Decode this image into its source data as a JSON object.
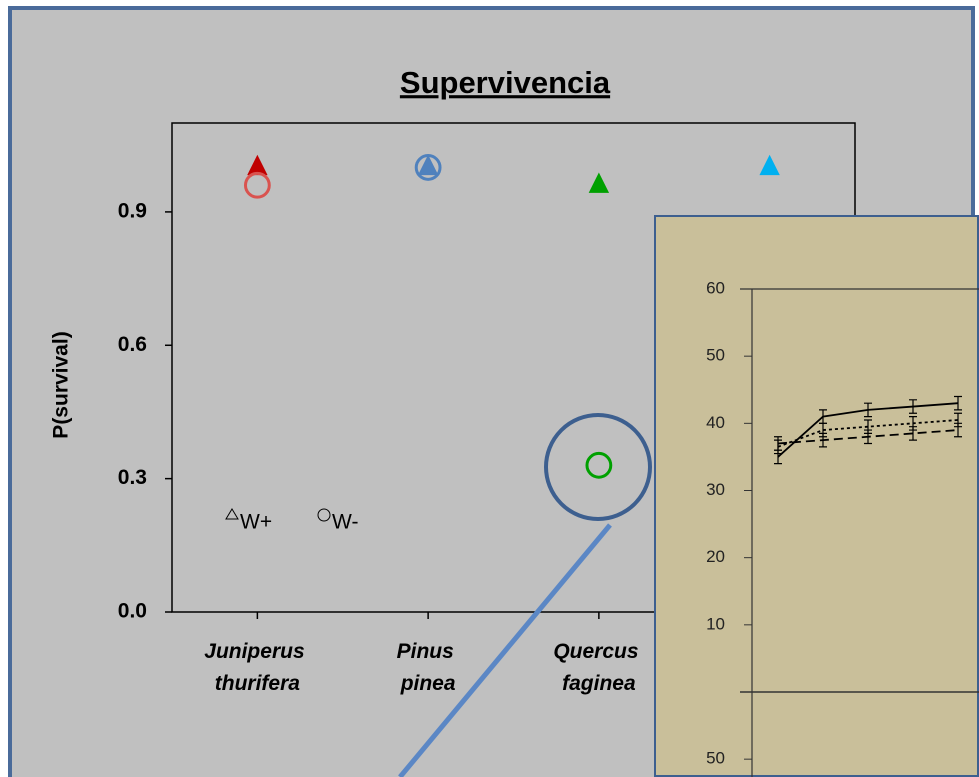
{
  "chart_data": [
    {
      "type": "scatter",
      "title": "Supervivencia",
      "y_label": "P(survival)",
      "categories": [
        "Juniperus thurifera",
        "Pinus pinea",
        "Quercus faginea",
        null
      ],
      "series": [
        {
          "name": "W+",
          "marker": "triangle",
          "point_colors": [
            "#c00000",
            "#4f81bd",
            "#00a000",
            "#00b0f0"
          ],
          "values": [
            1.0,
            1.0,
            0.96,
            1.0
          ]
        },
        {
          "name": "W-",
          "marker": "circle",
          "point_colors": [
            "#d9534f",
            "#4f81bd",
            "#00a000",
            "#00b0f0"
          ],
          "values": [
            0.96,
            1.0,
            0.33,
            null
          ]
        }
      ],
      "ylim": [
        0,
        1.1
      ],
      "yticks": [
        {
          "value": 0,
          "label": "0.0"
        },
        0.3,
        0.6,
        0.9
      ]
    },
    {
      "type": "line",
      "categories": [
        null,
        null,
        null,
        null,
        null
      ],
      "series": [
        {
          "dash": "none",
          "color": "#000000",
          "values": [
            35,
            41,
            42,
            42.5,
            43
          ],
          "errors": [
            1,
            1,
            1,
            1,
            1
          ]
        },
        {
          "dash": "3,3",
          "color": "#000000",
          "values": [
            36.5,
            39,
            39.5,
            40,
            40.5
          ],
          "errors": [
            1,
            1,
            1,
            1,
            1
          ]
        },
        {
          "dash": "9,5",
          "color": "#000000",
          "values": [
            37,
            37.5,
            38,
            38.5,
            39
          ],
          "errors": [
            1,
            1,
            1,
            1,
            1
          ]
        }
      ],
      "ylim": [
        0,
        60
      ],
      "yticks": [
        10,
        20,
        30,
        40,
        50,
        60
      ]
    },
    {
      "type": "line",
      "ylim": [
        0,
        60
      ],
      "yticks": [
        50
      ]
    }
  ]
}
